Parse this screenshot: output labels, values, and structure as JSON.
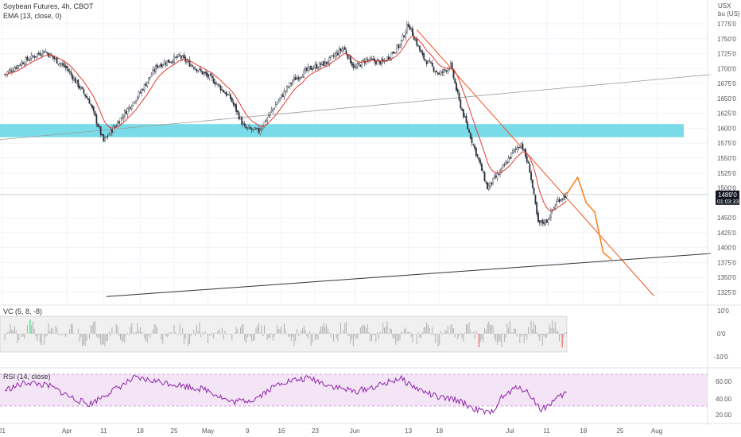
{
  "chart_data": [
    {
      "type": "candlestick",
      "legend": {
        "main": "Soybean Futures, 4h, CBOT",
        "ema": "EMA (13, close, 0)"
      },
      "currency": "USX",
      "unit": "bu (US)",
      "y_range": [
        1310,
        1790
      ],
      "y_ticks": [
        "1775'0",
        "1750'0",
        "1725'0",
        "1700'0",
        "1675'0",
        "1650'0",
        "1625'0",
        "1600'0",
        "1575'0",
        "1550'0",
        "1525'0",
        "1500'0",
        "1450'0",
        "1425'0",
        "1400'0",
        "1375'0",
        "1350'0",
        "1325'0"
      ],
      "last_price": {
        "price_label": "1489'0",
        "countdown": "01:03:33",
        "value": 1489
      },
      "price_anchors": [
        {
          "t": 0,
          "p": 1690
        },
        {
          "t": 3,
          "p": 1710
        },
        {
          "t": 7,
          "p": 1730
        },
        {
          "t": 11,
          "p": 1700
        },
        {
          "t": 15,
          "p": 1645
        },
        {
          "t": 17.5,
          "p": 1578
        },
        {
          "t": 20,
          "p": 1610
        },
        {
          "t": 24,
          "p": 1660
        },
        {
          "t": 27,
          "p": 1705
        },
        {
          "t": 31,
          "p": 1720
        },
        {
          "t": 34,
          "p": 1700
        },
        {
          "t": 37,
          "p": 1680
        },
        {
          "t": 40,
          "p": 1650
        },
        {
          "t": 42.5,
          "p": 1600
        },
        {
          "t": 45,
          "p": 1595
        },
        {
          "t": 48,
          "p": 1640
        },
        {
          "t": 51,
          "p": 1680
        },
        {
          "t": 54,
          "p": 1700
        },
        {
          "t": 57,
          "p": 1710
        },
        {
          "t": 60,
          "p": 1735
        },
        {
          "t": 62,
          "p": 1700
        },
        {
          "t": 64,
          "p": 1715
        },
        {
          "t": 67,
          "p": 1710
        },
        {
          "t": 70,
          "p": 1740
        },
        {
          "t": 71.5,
          "p": 1775
        },
        {
          "t": 74,
          "p": 1720
        },
        {
          "t": 77,
          "p": 1690
        },
        {
          "t": 79,
          "p": 1705
        },
        {
          "t": 80.5,
          "p": 1645
        },
        {
          "t": 82,
          "p": 1600
        },
        {
          "t": 84,
          "p": 1545
        },
        {
          "t": 85.5,
          "p": 1500
        },
        {
          "t": 88,
          "p": 1530
        },
        {
          "t": 90,
          "p": 1560
        },
        {
          "t": 91.5,
          "p": 1575
        },
        {
          "t": 93,
          "p": 1530
        },
        {
          "t": 94.5,
          "p": 1440
        },
        {
          "t": 96,
          "p": 1445
        },
        {
          "t": 98,
          "p": 1480
        },
        {
          "t": 99.5,
          "p": 1489
        }
      ],
      "projection": [
        {
          "t": 99.5,
          "p": 1489
        },
        {
          "t": 101.5,
          "p": 1518
        },
        {
          "t": 103,
          "p": 1475
        },
        {
          "t": 104.5,
          "p": 1460
        },
        {
          "t": 106,
          "p": 1392
        },
        {
          "t": 107.5,
          "p": 1380
        }
      ],
      "zone": [
        1585,
        1607
      ],
      "trendlines": [
        {
          "name": "upper-support",
          "from": {
            "t": -2,
            "p": 1580
          },
          "to": {
            "t": 125,
            "p": 1690
          }
        },
        {
          "name": "downtrend",
          "from": {
            "t": 73,
            "p": 1765
          },
          "to": {
            "t": 115,
            "p": 1319
          }
        },
        {
          "name": "lower-support",
          "from": {
            "t": 18,
            "p": 1318
          },
          "to": {
            "t": 125,
            "p": 1390
          }
        }
      ]
    },
    {
      "type": "bar",
      "label": "VC (5, 8, -8)",
      "y_ticks": [
        "10'0",
        "0'0",
        "-10'0"
      ],
      "band": [
        -8,
        8
      ]
    },
    {
      "type": "line",
      "label": "RSI (14, close)",
      "y_ticks": [
        "60.00",
        "40.00",
        "20.00"
      ],
      "band": [
        30,
        70
      ],
      "anchors": [
        {
          "t": 0,
          "p": 50
        },
        {
          "t": 4,
          "p": 60
        },
        {
          "t": 8,
          "p": 55
        },
        {
          "t": 12,
          "p": 40
        },
        {
          "t": 15,
          "p": 32
        },
        {
          "t": 18,
          "p": 45
        },
        {
          "t": 23,
          "p": 65
        },
        {
          "t": 28,
          "p": 60
        },
        {
          "t": 32,
          "p": 55
        },
        {
          "t": 36,
          "p": 50
        },
        {
          "t": 40,
          "p": 35
        },
        {
          "t": 44,
          "p": 38
        },
        {
          "t": 49,
          "p": 60
        },
        {
          "t": 54,
          "p": 65
        },
        {
          "t": 58,
          "p": 55
        },
        {
          "t": 62,
          "p": 48
        },
        {
          "t": 66,
          "p": 55
        },
        {
          "t": 70,
          "p": 65
        },
        {
          "t": 73,
          "p": 52
        },
        {
          "t": 77,
          "p": 40
        },
        {
          "t": 80,
          "p": 38
        },
        {
          "t": 83,
          "p": 27
        },
        {
          "t": 86,
          "p": 20
        },
        {
          "t": 88,
          "p": 40
        },
        {
          "t": 91,
          "p": 55
        },
        {
          "t": 93,
          "p": 45
        },
        {
          "t": 95,
          "p": 25
        },
        {
          "t": 98,
          "p": 40
        },
        {
          "t": 99.5,
          "p": 47
        }
      ]
    }
  ],
  "x_axis": {
    "ticks": [
      {
        "label": "21",
        "t": -0.5
      },
      {
        "label": "Apr",
        "t": 11
      },
      {
        "label": "11",
        "t": 17.5
      },
      {
        "label": "18",
        "t": 24
      },
      {
        "label": "25",
        "t": 30
      },
      {
        "label": "May",
        "t": 36
      },
      {
        "label": "9",
        "t": 43
      },
      {
        "label": "16",
        "t": 49
      },
      {
        "label": "23",
        "t": 55
      },
      {
        "label": "Jun",
        "t": 62
      },
      {
        "label": "13",
        "t": 71.5
      },
      {
        "label": "18",
        "t": 77
      },
      {
        "label": "Jul",
        "t": 89.5
      },
      {
        "label": "11",
        "t": 96
      },
      {
        "label": "18",
        "t": 102.5
      },
      {
        "label": "25",
        "t": 109
      },
      {
        "label": "Aug",
        "t": 115.5
      }
    ]
  },
  "colors": {
    "up": "#26a69a",
    "down": "#ef5350",
    "candle": "#2a2e39",
    "ema": "#e53935",
    "zone": "#4dd0e1",
    "rsi": "#8e24aa",
    "projection": "#f57f17",
    "downtrend": "#f4511e"
  }
}
